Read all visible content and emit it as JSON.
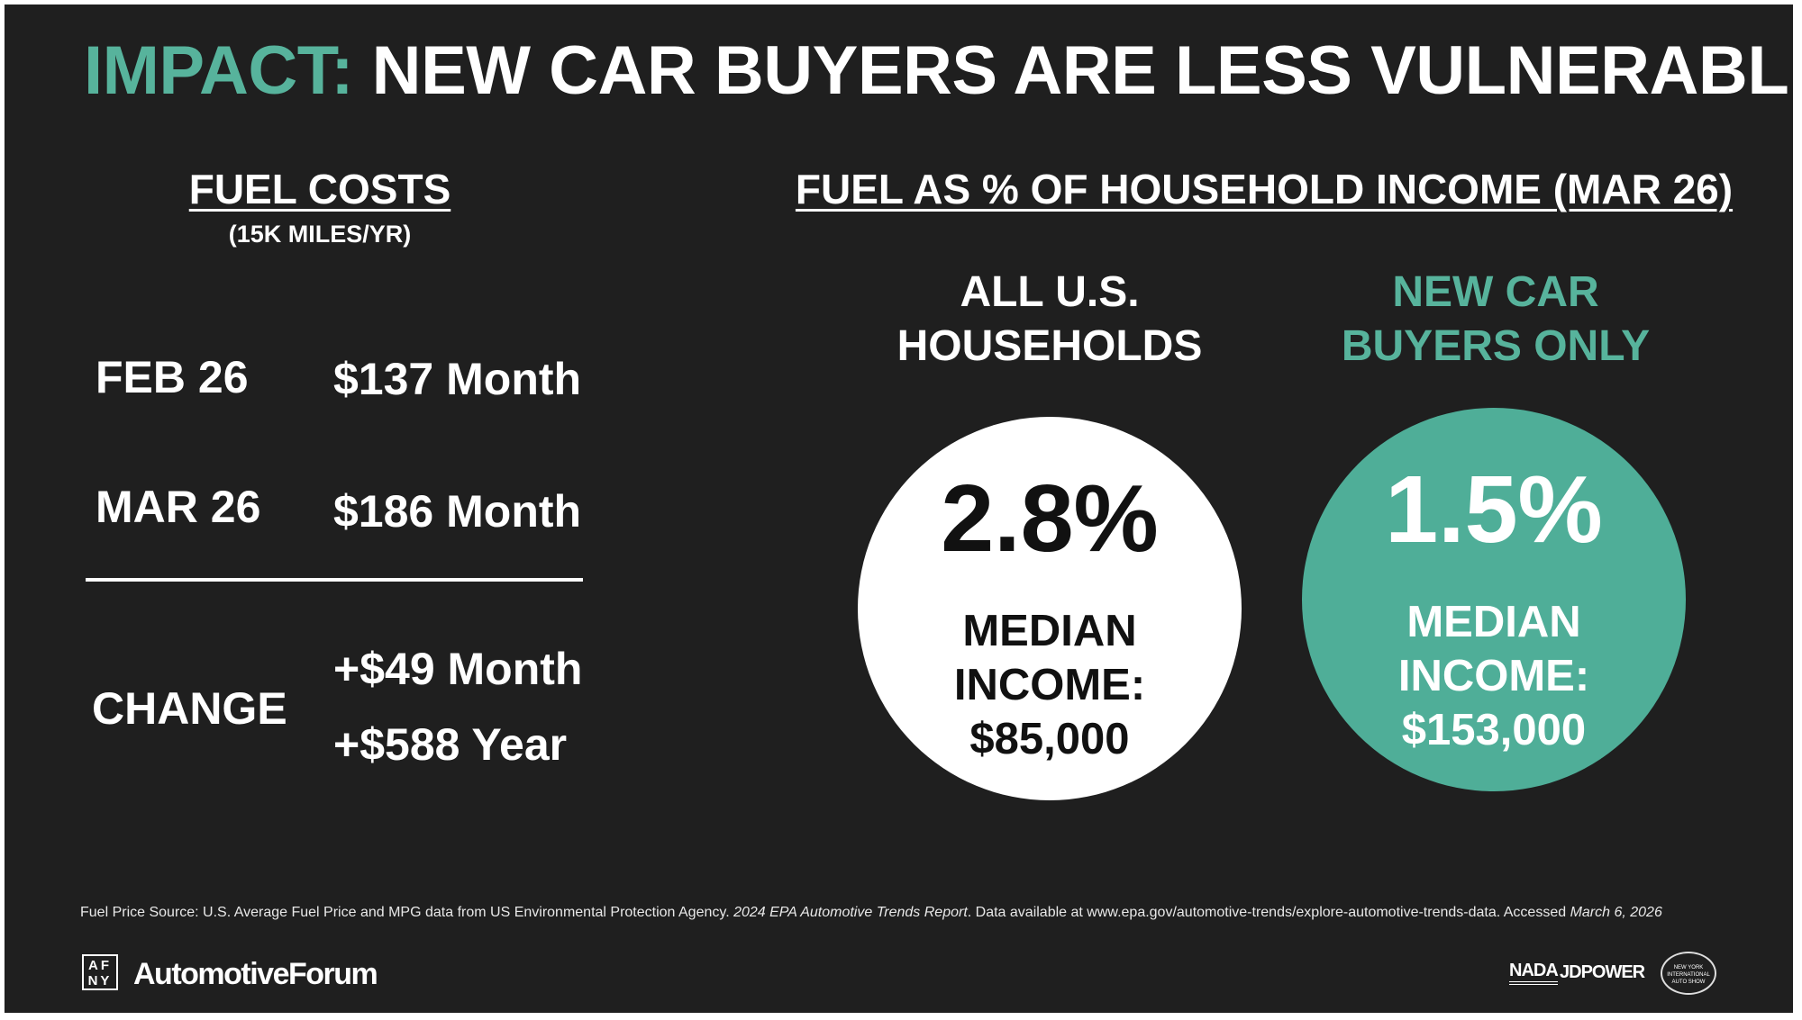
{
  "colors": {
    "accent": "#57b39c",
    "background": "#1f1f1f",
    "teal_circle": "#4fae98"
  },
  "title": {
    "prefix": "IMPACT:",
    "main": " NEW CAR BUYERS ARE LESS VULNERABLE"
  },
  "fuel_costs": {
    "heading": "FUEL COSTS",
    "subheading": "(15K MILES/YR)",
    "rows": [
      {
        "label": "FEB 26",
        "value": "$137 Month"
      },
      {
        "label": "MAR 26",
        "value": "$186 Month"
      }
    ],
    "change": {
      "label": "CHANGE",
      "monthly": "+$49 Month",
      "yearly": "+$588 Year"
    }
  },
  "income_share": {
    "heading": "FUEL AS % OF HOUSEHOLD INCOME (MAR 26)",
    "groups": [
      {
        "label_line1": "ALL U.S.",
        "label_line2": "HOUSEHOLDS",
        "percent": "2.8%",
        "median_line1": "MEDIAN",
        "median_line2": "INCOME:",
        "median_value": "$85,000"
      },
      {
        "label_line1": "NEW CAR",
        "label_line2": "BUYERS ONLY",
        "percent": "1.5%",
        "median_line1": "MEDIAN",
        "median_line2": "INCOME:",
        "median_value": "$153,000"
      }
    ]
  },
  "footer": {
    "source_a": "Fuel Price Source: U.S. Average Fuel Price and MPG data from US Environmental Protection Agency. ",
    "source_italic": "2024 EPA Automotive Trends Report",
    "source_b": ". Data available at www.epa.gov/automotive-trends/explore-automotive-trends-data. Accessed ",
    "source_date": "March 6, 2026",
    "logo_mark": "AF NY",
    "logo_text": "AutomotiveForum",
    "partners": [
      "NADA",
      "JDPOWER",
      "NEW YORK INTERNATIONAL AUTO SHOW"
    ]
  }
}
